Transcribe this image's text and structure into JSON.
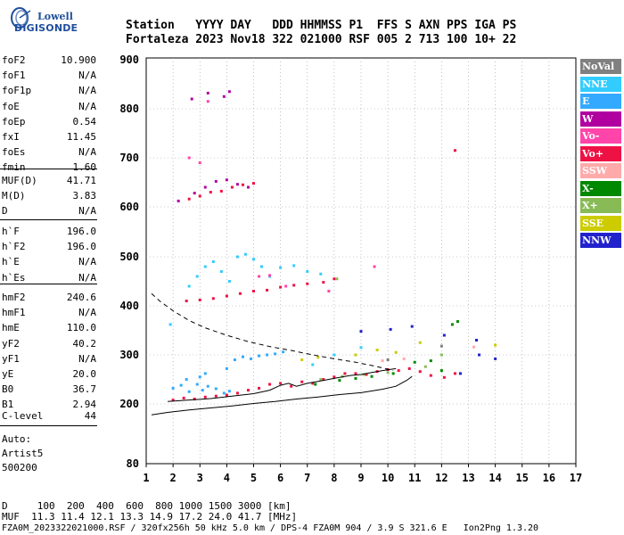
{
  "logo": {
    "line1": "Lowell",
    "line2": "DIGISONDE"
  },
  "header": {
    "row1": "Station   YYYY DAY   DDD HHMMSS P1  FFS S AXN PPS IGA PS",
    "row2": "Fortaleza 2023 Nov18 322 021000 RSF 005 2 713 100 10+ 22"
  },
  "params": {
    "group1": [
      {
        "name": "foF2",
        "value": "10.900"
      },
      {
        "name": "foF1",
        "value": "N/A"
      },
      {
        "name": "foF1p",
        "value": "N/A"
      },
      {
        "name": "foE",
        "value": "N/A"
      },
      {
        "name": "foEp",
        "value": "0.54"
      },
      {
        "name": "fxI",
        "value": "11.45"
      },
      {
        "name": "foEs",
        "value": "N/A"
      },
      {
        "name": "fmin",
        "value": "1.60"
      }
    ],
    "group2": [
      {
        "name": "MUF(D)",
        "value": "41.71"
      },
      {
        "name": "M(D)",
        "value": "3.83"
      },
      {
        "name": "D",
        "value": "N/A"
      }
    ],
    "group3": [
      {
        "name": "h`F",
        "value": "196.0"
      },
      {
        "name": "h`F2",
        "value": "196.0"
      },
      {
        "name": "h`E",
        "value": "N/A"
      },
      {
        "name": "h`Es",
        "value": "N/A"
      }
    ],
    "group4": [
      {
        "name": "hmF2",
        "value": "240.6"
      },
      {
        "name": "hmF1",
        "value": "N/A"
      },
      {
        "name": "hmE",
        "value": "110.0"
      },
      {
        "name": "yF2",
        "value": "40.2"
      },
      {
        "name": "yF1",
        "value": "N/A"
      },
      {
        "name": "yE",
        "value": "20.0"
      },
      {
        "name": "B0",
        "value": "36.7"
      },
      {
        "name": "B1",
        "value": "2.94"
      }
    ],
    "clevel": {
      "name": "C-level",
      "value": "44"
    }
  },
  "autoscaling": {
    "line1": "Auto:",
    "line2": "Artist5",
    "line3": "500200"
  },
  "footer": {
    "row1": "D     100  200  400  600  800 1000 1500 3000 [km]",
    "row2": "MUF  11.3 11.4 12.1 13.3 14.9 17.2 24.0 41.7 [MHz]",
    "row3": "FZA0M_2023322021000.RSF / 320fx256h 50 kHz 5.0 km / DPS-4 FZA0M 904 / 3.9 S 321.6 E   Ion2Png 1.3.20"
  },
  "legend": [
    {
      "label": "NoVal",
      "color": "#808080"
    },
    {
      "label": "NNE",
      "color": "#33ccff"
    },
    {
      "label": "E",
      "color": "#33aaff"
    },
    {
      "label": "W",
      "color": "#b000a0"
    },
    {
      "label": "Vo-",
      "color": "#ff44aa"
    },
    {
      "label": "Vo+",
      "color": "#ee1144"
    },
    {
      "label": "SSW",
      "color": "#ffaaaa"
    },
    {
      "label": "X-",
      "color": "#008800"
    },
    {
      "label": "X+",
      "color": "#88bb55"
    },
    {
      "label": "SSE",
      "color": "#cccc00"
    },
    {
      "label": "NNW",
      "color": "#2222cc"
    }
  ],
  "chart_data": {
    "type": "scatter",
    "xlabel": "",
    "ylabel": "",
    "xlim": [
      1,
      17
    ],
    "ylim": [
      80,
      900
    ],
    "x_ticks": [
      1,
      2,
      3,
      4,
      5,
      6,
      7,
      8,
      9,
      10,
      11,
      12,
      13,
      14,
      15,
      16,
      17
    ],
    "y_ticks": [
      80,
      200,
      300,
      400,
      500,
      600,
      700,
      800,
      900
    ],
    "grid": true,
    "grid_style": "dotted",
    "series": [
      {
        "name": "E",
        "color": "#33aaff",
        "points": [
          [
            2,
            232
          ],
          [
            2.3,
            238
          ],
          [
            2.6,
            225
          ],
          [
            2.9,
            240
          ],
          [
            3.1,
            228
          ],
          [
            3.3,
            236
          ],
          [
            3.6,
            231
          ],
          [
            3.9,
            222
          ],
          [
            4.1,
            226
          ],
          [
            4.3,
            290
          ],
          [
            4.6,
            296
          ],
          [
            4.9,
            292
          ],
          [
            5.2,
            298
          ],
          [
            5.5,
            300
          ],
          [
            5.8,
            302
          ],
          [
            6.1,
            306
          ],
          [
            3.0,
            255
          ],
          [
            3.2,
            262
          ],
          [
            2.5,
            250
          ],
          [
            4.0,
            272
          ]
        ]
      },
      {
        "name": "NNE",
        "color": "#33ccff",
        "points": [
          [
            2.6,
            440
          ],
          [
            2.9,
            460
          ],
          [
            3.2,
            480
          ],
          [
            3.5,
            490
          ],
          [
            3.8,
            470
          ],
          [
            4.1,
            450
          ],
          [
            4.4,
            500
          ],
          [
            4.7,
            505
          ],
          [
            5.0,
            495
          ],
          [
            5.3,
            480
          ],
          [
            5.6,
            460
          ],
          [
            6.0,
            478
          ],
          [
            6.5,
            482
          ],
          [
            7.0,
            470
          ],
          [
            7.5,
            465
          ],
          [
            1.9,
            362
          ],
          [
            7.2,
            280
          ],
          [
            8.0,
            300
          ],
          [
            9.0,
            315
          ]
        ]
      },
      {
        "name": "Vo+",
        "color": "#ee1144",
        "points": [
          [
            2.0,
            208
          ],
          [
            2.4,
            212
          ],
          [
            2.8,
            210
          ],
          [
            3.2,
            214
          ],
          [
            3.6,
            216
          ],
          [
            4.0,
            218
          ],
          [
            4.4,
            222
          ],
          [
            4.8,
            228
          ],
          [
            5.2,
            232
          ],
          [
            5.6,
            240
          ],
          [
            6.0,
            242
          ],
          [
            6.4,
            236
          ],
          [
            6.8,
            245
          ],
          [
            7.2,
            242
          ],
          [
            7.6,
            250
          ],
          [
            8.0,
            255
          ],
          [
            8.4,
            262
          ],
          [
            8.8,
            262
          ],
          [
            9.2,
            260
          ],
          [
            9.6,
            266
          ],
          [
            10.0,
            270
          ],
          [
            10.4,
            268
          ],
          [
            10.8,
            272
          ],
          [
            11.2,
            266
          ],
          [
            11.6,
            258
          ],
          [
            12.1,
            254
          ],
          [
            12.5,
            262
          ],
          [
            2.5,
            410
          ],
          [
            3.0,
            412
          ],
          [
            3.5,
            415
          ],
          [
            4.0,
            420
          ],
          [
            4.5,
            425
          ],
          [
            5.0,
            430
          ],
          [
            5.5,
            432
          ],
          [
            6.0,
            438
          ],
          [
            6.5,
            442
          ],
          [
            7.0,
            445
          ],
          [
            7.6,
            448
          ],
          [
            8.0,
            455
          ],
          [
            2.6,
            616
          ],
          [
            3.0,
            622
          ],
          [
            3.4,
            630
          ],
          [
            3.8,
            632
          ],
          [
            4.2,
            640
          ],
          [
            4.6,
            645
          ],
          [
            5.0,
            648
          ],
          [
            12.5,
            715
          ]
        ]
      },
      {
        "name": "W",
        "color": "#b000a0",
        "points": [
          [
            2.2,
            612
          ],
          [
            2.8,
            628
          ],
          [
            3.2,
            640
          ],
          [
            3.6,
            652
          ],
          [
            4.0,
            655
          ],
          [
            4.4,
            646
          ],
          [
            4.8,
            640
          ],
          [
            2.7,
            820
          ],
          [
            3.3,
            832
          ],
          [
            3.9,
            825
          ],
          [
            4.1,
            835
          ]
        ]
      },
      {
        "name": "Vo-",
        "color": "#ff44aa",
        "points": [
          [
            2.6,
            700
          ],
          [
            3.0,
            690
          ],
          [
            3.3,
            815
          ],
          [
            5.2,
            460
          ],
          [
            5.6,
            462
          ],
          [
            6.2,
            440
          ],
          [
            7.8,
            430
          ],
          [
            9.5,
            480
          ]
        ]
      },
      {
        "name": "X-",
        "color": "#008800",
        "points": [
          [
            7.3,
            240
          ],
          [
            8.2,
            248
          ],
          [
            8.8,
            252
          ],
          [
            9.4,
            256
          ],
          [
            10.2,
            262
          ],
          [
            11.0,
            285
          ],
          [
            11.6,
            288
          ],
          [
            12.0,
            268
          ],
          [
            12.4,
            362
          ],
          [
            12.6,
            368
          ]
        ]
      },
      {
        "name": "X+",
        "color": "#88bb55",
        "points": [
          [
            7.5,
            250
          ],
          [
            8.3,
            256
          ],
          [
            9.1,
            260
          ],
          [
            10.0,
            264
          ],
          [
            11.4,
            276
          ],
          [
            12.0,
            300
          ],
          [
            8.1,
            455
          ]
        ]
      },
      {
        "name": "SSE",
        "color": "#cccc00",
        "points": [
          [
            6.8,
            290
          ],
          [
            7.4,
            295
          ],
          [
            8.8,
            300
          ],
          [
            9.6,
            310
          ],
          [
            10.3,
            305
          ],
          [
            11.2,
            325
          ],
          [
            14.0,
            320
          ]
        ]
      },
      {
        "name": "NNW",
        "color": "#2222cc",
        "points": [
          [
            9.0,
            348
          ],
          [
            10.1,
            352
          ],
          [
            10.9,
            358
          ],
          [
            12.1,
            340
          ],
          [
            13.3,
            330
          ],
          [
            13.4,
            300
          ],
          [
            14.0,
            292
          ],
          [
            12.7,
            262
          ]
        ]
      },
      {
        "name": "SSW",
        "color": "#ffaaaa",
        "points": [
          [
            9.8,
            288
          ],
          [
            10.6,
            292
          ],
          [
            13.2,
            316
          ]
        ]
      },
      {
        "name": "NoVal",
        "color": "#808080",
        "points": [
          [
            10.0,
            290
          ],
          [
            12.0,
            318
          ]
        ]
      }
    ],
    "profile_solid": [
      [
        1.2,
        178
      ],
      [
        1.8,
        183
      ],
      [
        2.6,
        188
      ],
      [
        3.4,
        192
      ],
      [
        4.2,
        196
      ],
      [
        5.0,
        201
      ],
      [
        5.8,
        205
      ],
      [
        6.6,
        210
      ],
      [
        7.4,
        214
      ],
      [
        8.2,
        219
      ],
      [
        9.0,
        223
      ],
      [
        9.8,
        230
      ],
      [
        10.3,
        236
      ],
      [
        10.7,
        248
      ],
      [
        10.9,
        256
      ]
    ],
    "trace_solid": [
      [
        1.8,
        205
      ],
      [
        2.6,
        208
      ],
      [
        3.4,
        211
      ],
      [
        4.2,
        216
      ],
      [
        5.0,
        221
      ],
      [
        5.6,
        228
      ],
      [
        6.0,
        238
      ],
      [
        6.3,
        242
      ],
      [
        6.6,
        236
      ],
      [
        7.0,
        242
      ],
      [
        7.4,
        246
      ],
      [
        7.8,
        250
      ],
      [
        8.2,
        254
      ],
      [
        8.6,
        258
      ],
      [
        9.0,
        260
      ],
      [
        9.4,
        264
      ],
      [
        9.8,
        268
      ],
      [
        10.3,
        272
      ]
    ],
    "profile_dashed": [
      [
        1.2,
        425
      ],
      [
        1.5,
        410
      ],
      [
        2.0,
        390
      ],
      [
        2.6,
        370
      ],
      [
        3.2,
        355
      ],
      [
        4.0,
        340
      ],
      [
        4.8,
        327
      ],
      [
        5.6,
        317
      ],
      [
        6.4,
        309
      ],
      [
        7.2,
        300
      ],
      [
        8.0,
        292
      ],
      [
        8.8,
        285
      ],
      [
        9.6,
        276
      ],
      [
        10.2,
        268
      ]
    ]
  }
}
